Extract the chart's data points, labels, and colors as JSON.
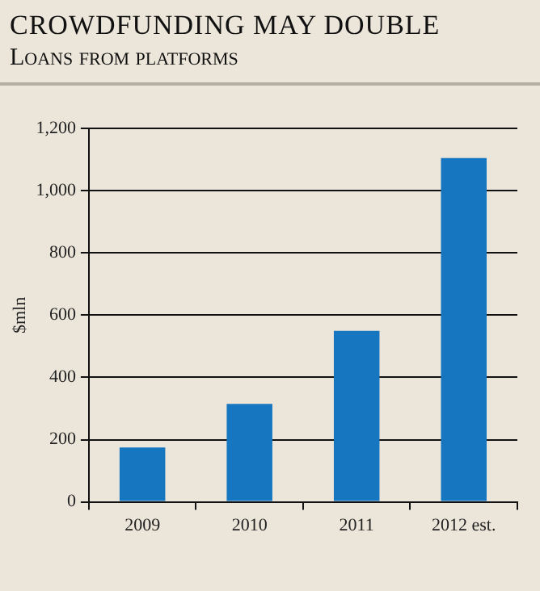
{
  "chart_data": {
    "type": "bar",
    "title": "CROWDFUNDING MAY DOUBLE",
    "subtitle": "Loans from platforms",
    "ylabel": "$mln",
    "categories": [
      "2009",
      "2010",
      "2011",
      "2012 est."
    ],
    "values": [
      175,
      315,
      550,
      1105
    ],
    "color": "#1677c0",
    "ylim": [
      0,
      1200
    ],
    "yticks": [
      {
        "value": 0,
        "label": "0"
      },
      {
        "value": 200,
        "label": "200"
      },
      {
        "value": 400,
        "label": "400"
      },
      {
        "value": 600,
        "label": "600"
      },
      {
        "value": 800,
        "label": "800"
      },
      {
        "value": 1000,
        "label": "1,000"
      },
      {
        "value": 1200,
        "label": "1,200"
      }
    ],
    "grid": "y",
    "legend": false
  }
}
